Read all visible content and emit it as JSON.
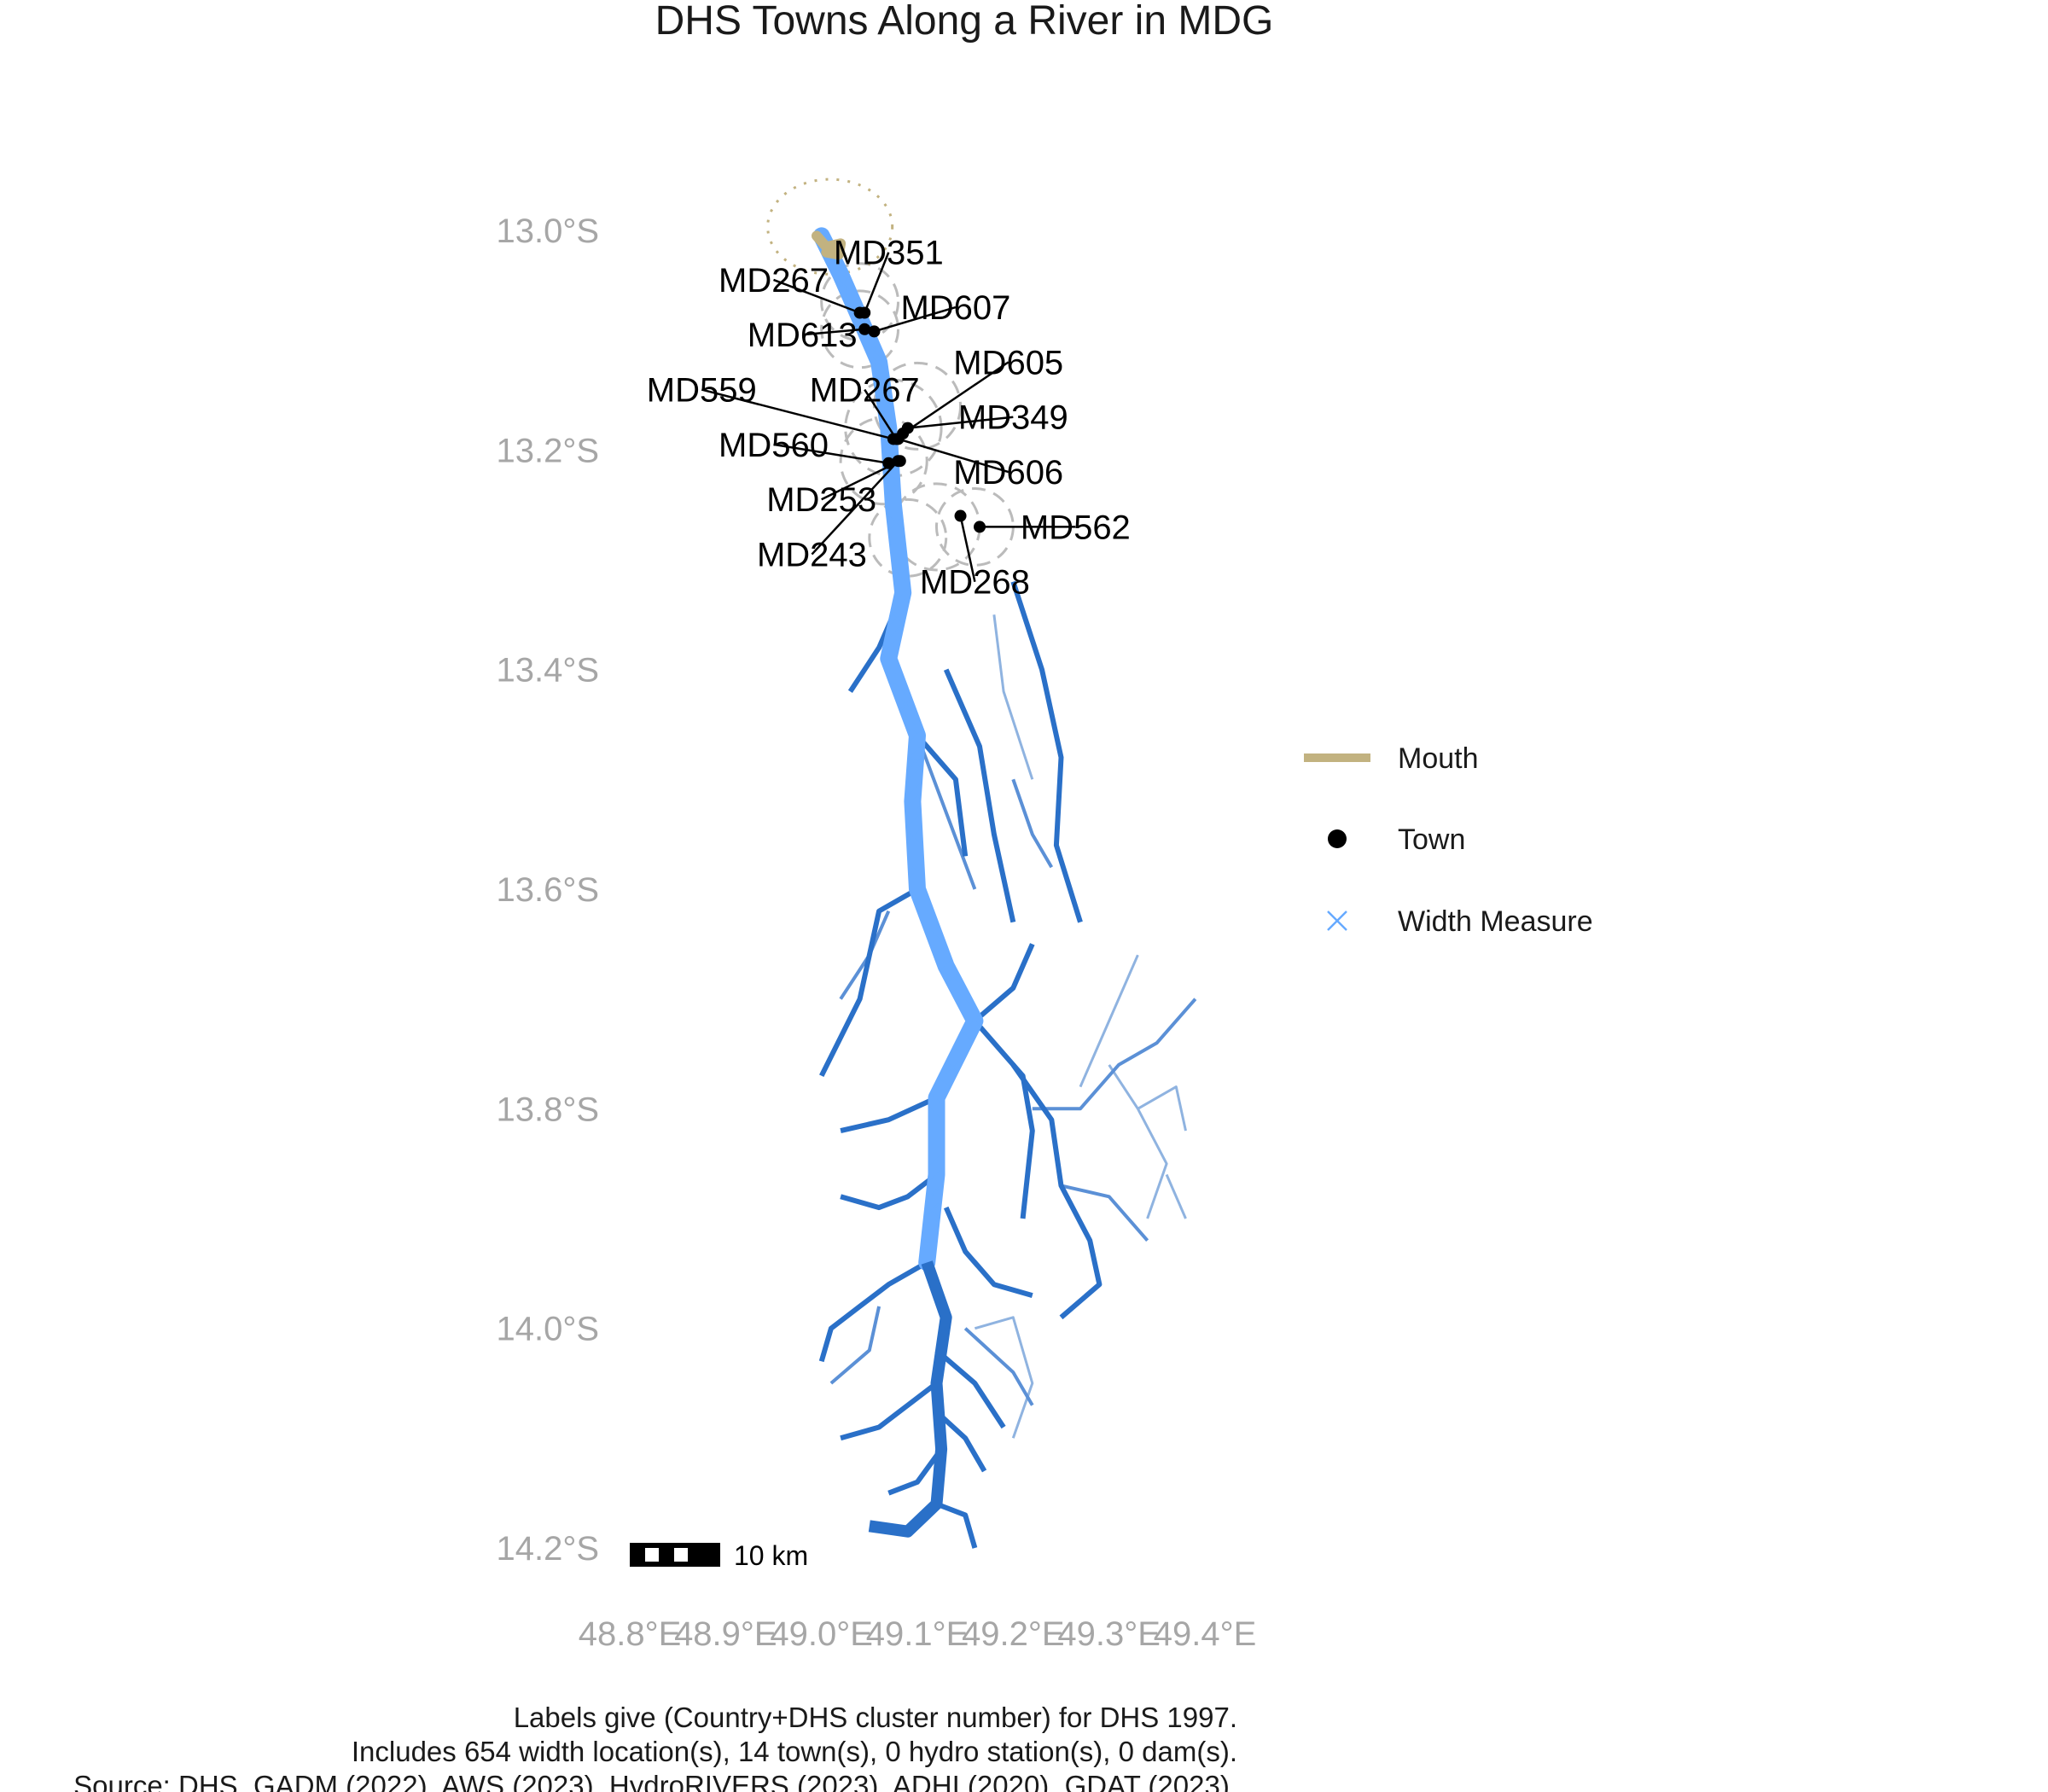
{
  "title": "DHS Towns Along a River in MDG",
  "colors": {
    "main_channel": "#66aaff",
    "tributary_dark": "#2a70c8",
    "tributary_mid": "#5b90d6",
    "tributary_light": "#8fb3e0",
    "mouth": "#c2b280",
    "town": "#000000",
    "width_measure": "#66aaff",
    "buffer": "#bbbbbb",
    "axis_text": "#a6a6a6"
  },
  "map": {
    "lon_range": [
      48.8,
      49.4
    ],
    "lat_range": [
      -14.2,
      -13.0
    ],
    "lat_ticks": [
      {
        "value": -13.0,
        "label": "13.0°S"
      },
      {
        "value": -13.2,
        "label": "13.2°S"
      },
      {
        "value": -13.4,
        "label": "13.4°S"
      },
      {
        "value": -13.6,
        "label": "13.6°S"
      },
      {
        "value": -13.8,
        "label": "13.8°S"
      },
      {
        "value": -14.0,
        "label": "14.0°S"
      },
      {
        "value": -14.2,
        "label": "14.2°S"
      }
    ],
    "lon_ticks": [
      {
        "value": 48.8,
        "label": "48.8°E"
      },
      {
        "value": 48.9,
        "label": "48.9°E"
      },
      {
        "value": 49.0,
        "label": "49.0°E"
      },
      {
        "value": 49.1,
        "label": "49.1°E"
      },
      {
        "value": 49.2,
        "label": "49.2°E"
      },
      {
        "value": 49.3,
        "label": "49.3°E"
      },
      {
        "value": 49.4,
        "label": "49.4°E"
      }
    ],
    "main_river": [
      [
        49.0,
        -13.005
      ],
      [
        49.02,
        -13.04
      ],
      [
        49.04,
        -13.08
      ],
      [
        49.06,
        -13.12
      ],
      [
        49.07,
        -13.18
      ],
      [
        49.075,
        -13.25
      ],
      [
        49.085,
        -13.33
      ],
      [
        49.07,
        -13.39
      ],
      [
        49.1,
        -13.46
      ],
      [
        49.095,
        -13.52
      ],
      [
        49.1,
        -13.6
      ],
      [
        49.13,
        -13.67
      ],
      [
        49.16,
        -13.72
      ],
      [
        49.12,
        -13.79
      ],
      [
        49.12,
        -13.86
      ],
      [
        49.11,
        -13.94
      ]
    ],
    "lower_river": [
      [
        49.11,
        -13.94
      ],
      [
        49.13,
        -13.99
      ],
      [
        49.12,
        -14.05
      ],
      [
        49.125,
        -14.11
      ],
      [
        49.12,
        -14.16
      ],
      [
        49.09,
        -14.185
      ],
      [
        49.05,
        -14.18
      ]
    ],
    "tributaries_dark": [
      [
        [
          49.085,
          -13.33
        ],
        [
          49.06,
          -13.38
        ],
        [
          49.03,
          -13.42
        ]
      ],
      [
        [
          49.1,
          -13.46
        ],
        [
          49.14,
          -13.5
        ],
        [
          49.15,
          -13.57
        ]
      ],
      [
        [
          49.13,
          -13.4
        ],
        [
          49.165,
          -13.47
        ],
        [
          49.18,
          -13.55
        ],
        [
          49.2,
          -13.63
        ]
      ],
      [
        [
          49.2,
          -13.32
        ],
        [
          49.23,
          -13.4
        ],
        [
          49.25,
          -13.48
        ],
        [
          49.245,
          -13.56
        ],
        [
          49.27,
          -13.63
        ]
      ],
      [
        [
          49.1,
          -13.6
        ],
        [
          49.06,
          -13.62
        ],
        [
          49.04,
          -13.7
        ],
        [
          49.0,
          -13.77
        ]
      ],
      [
        [
          49.12,
          -13.79
        ],
        [
          49.07,
          -13.81
        ],
        [
          49.02,
          -13.82
        ]
      ],
      [
        [
          49.16,
          -13.72
        ],
        [
          49.2,
          -13.69
        ],
        [
          49.22,
          -13.65
        ]
      ],
      [
        [
          49.16,
          -13.72
        ],
        [
          49.21,
          -13.77
        ],
        [
          49.22,
          -13.82
        ],
        [
          49.21,
          -13.9
        ]
      ],
      [
        [
          49.2,
          -13.76
        ],
        [
          49.24,
          -13.81
        ],
        [
          49.25,
          -13.87
        ],
        [
          49.28,
          -13.92
        ],
        [
          49.29,
          -13.96
        ],
        [
          49.25,
          -13.99
        ]
      ],
      [
        [
          49.12,
          -13.86
        ],
        [
          49.09,
          -13.88
        ],
        [
          49.06,
          -13.89
        ],
        [
          49.02,
          -13.88
        ]
      ],
      [
        [
          49.13,
          -13.89
        ],
        [
          49.15,
          -13.93
        ],
        [
          49.18,
          -13.96
        ],
        [
          49.22,
          -13.97
        ]
      ],
      [
        [
          49.11,
          -13.94
        ],
        [
          49.07,
          -13.96
        ],
        [
          49.04,
          -13.98
        ],
        [
          49.01,
          -14.0
        ],
        [
          49.0,
          -14.03
        ]
      ],
      [
        [
          49.12,
          -14.05
        ],
        [
          49.09,
          -14.07
        ],
        [
          49.06,
          -14.09
        ],
        [
          49.02,
          -14.1
        ]
      ],
      [
        [
          49.125,
          -14.08
        ],
        [
          49.15,
          -14.1
        ],
        [
          49.17,
          -14.13
        ]
      ],
      [
        [
          49.12,
          -14.02
        ],
        [
          49.16,
          -14.05
        ],
        [
          49.19,
          -14.09
        ]
      ],
      [
        [
          49.125,
          -14.11
        ],
        [
          49.1,
          -14.14
        ],
        [
          49.07,
          -14.15
        ]
      ],
      [
        [
          49.12,
          -14.16
        ],
        [
          49.15,
          -14.17
        ],
        [
          49.16,
          -14.2
        ]
      ]
    ],
    "tributaries_mid": [
      [
        [
          49.1,
          -13.46
        ],
        [
          49.13,
          -13.53
        ],
        [
          49.16,
          -13.6
        ]
      ],
      [
        [
          49.2,
          -13.5
        ],
        [
          49.22,
          -13.55
        ],
        [
          49.24,
          -13.58
        ]
      ],
      [
        [
          49.07,
          -13.62
        ],
        [
          49.05,
          -13.66
        ],
        [
          49.02,
          -13.7
        ]
      ],
      [
        [
          49.22,
          -13.8
        ],
        [
          49.27,
          -13.8
        ],
        [
          49.31,
          -13.76
        ],
        [
          49.35,
          -13.74
        ],
        [
          49.39,
          -13.7
        ]
      ],
      [
        [
          49.25,
          -13.87
        ],
        [
          49.3,
          -13.88
        ],
        [
          49.34,
          -13.92
        ]
      ],
      [
        [
          49.06,
          -13.98
        ],
        [
          49.05,
          -14.02
        ],
        [
          49.01,
          -14.05
        ]
      ],
      [
        [
          49.15,
          -14.0
        ],
        [
          49.2,
          -14.04
        ],
        [
          49.22,
          -14.07
        ]
      ]
    ],
    "tributaries_light": [
      [
        [
          49.18,
          -13.35
        ],
        [
          49.19,
          -13.42
        ],
        [
          49.22,
          -13.5
        ]
      ],
      [
        [
          49.27,
          -13.78
        ],
        [
          49.3,
          -13.72
        ],
        [
          49.33,
          -13.66
        ]
      ],
      [
        [
          49.3,
          -13.76
        ],
        [
          49.33,
          -13.8
        ],
        [
          49.36,
          -13.85
        ],
        [
          49.34,
          -13.9
        ]
      ],
      [
        [
          49.33,
          -13.8
        ],
        [
          49.37,
          -13.78
        ],
        [
          49.38,
          -13.82
        ]
      ],
      [
        [
          49.16,
          -14.0
        ],
        [
          49.2,
          -13.99
        ],
        [
          49.22,
          -14.05
        ],
        [
          49.2,
          -14.1
        ]
      ],
      [
        [
          49.36,
          -13.86
        ],
        [
          49.38,
          -13.9
        ]
      ]
    ],
    "mouth_path": [
      [
        48.995,
        -13.005
      ],
      [
        49.005,
        -13.015
      ],
      [
        49.02,
        -13.012
      ],
      [
        49.018,
        -13.022
      ],
      [
        49.005,
        -13.02
      ]
    ],
    "mouth_buffer": {
      "lon": 49.0,
      "lat": -13.02,
      "radius_lon": 0.065,
      "radius_lat": 0.09
    },
    "town_buffers": [
      {
        "lon": 49.04,
        "lat": -13.065,
        "r": 0.04
      },
      {
        "lon": 49.04,
        "lat": -13.09,
        "r": 0.04
      },
      {
        "lon": 49.075,
        "lat": -13.18,
        "r": 0.05
      },
      {
        "lon": 49.065,
        "lat": -13.21,
        "r": 0.045
      },
      {
        "lon": 49.1,
        "lat": -13.16,
        "r": 0.045
      },
      {
        "lon": 49.12,
        "lat": -13.27,
        "r": 0.045
      },
      {
        "lon": 49.16,
        "lat": -13.27,
        "r": 0.04
      },
      {
        "lon": 49.09,
        "lat": -13.28,
        "r": 0.04
      }
    ],
    "towns": [
      {
        "id": "MD351",
        "lon": 49.045,
        "lat": -13.075,
        "label_lon": 49.07,
        "label_lat": -13.02
      },
      {
        "id": "MD267",
        "lon": 49.04,
        "lat": -13.075,
        "label_lon": 48.95,
        "label_lat": -13.045
      },
      {
        "id": "MD607",
        "lon": 49.055,
        "lat": -13.092,
        "label_lon": 49.14,
        "label_lat": -13.07
      },
      {
        "id": "MD613",
        "lon": 49.045,
        "lat": -13.09,
        "label_lon": 48.98,
        "label_lat": -13.095
      },
      {
        "id": "MD605",
        "lon": 49.085,
        "lat": -13.185,
        "label_lon": 49.195,
        "label_lat": -13.12
      },
      {
        "id": "MD559",
        "lon": 49.075,
        "lat": -13.19,
        "label_lon": 48.875,
        "label_lat": -13.145
      },
      {
        "id": "MD267",
        "lon": 49.078,
        "lat": -13.19,
        "label_lon": 49.045,
        "label_lat": -13.145
      },
      {
        "id": "MD349",
        "lon": 49.09,
        "lat": -13.18,
        "label_lon": 49.2,
        "label_lat": -13.17
      },
      {
        "id": "MD560",
        "lon": 49.07,
        "lat": -13.212,
        "label_lon": 48.95,
        "label_lat": -13.195
      },
      {
        "id": "MD606",
        "lon": 49.08,
        "lat": -13.19,
        "label_lon": 49.195,
        "label_lat": -13.22
      },
      {
        "id": "MD253",
        "lon": 49.082,
        "lat": -13.21,
        "label_lon": 49.0,
        "label_lat": -13.245
      },
      {
        "id": "MD562",
        "lon": 49.165,
        "lat": -13.27,
        "label_lon": 49.265,
        "label_lat": -13.27
      },
      {
        "id": "MD243",
        "lon": 49.08,
        "lat": -13.21,
        "label_lon": 48.99,
        "label_lat": -13.295
      },
      {
        "id": "MD268",
        "lon": 49.145,
        "lat": -13.26,
        "label_lon": 49.16,
        "label_lat": -13.32
      }
    ]
  },
  "legend": {
    "items": [
      {
        "label": "Mouth",
        "kind": "line"
      },
      {
        "label": "Town",
        "kind": "point"
      },
      {
        "label": "Width Measure",
        "kind": "cross"
      }
    ]
  },
  "scale_bar": {
    "label": "10 km"
  },
  "captions": [
    "Labels give (Country+DHS cluster number) for DHS 1997.",
    "Includes 654 width location(s), 14 town(s), 0 hydro station(s), 0 dam(s).",
    "Source: DHS, GADM (2022), AWS (2023), HydroRIVERS (2023), ADHI (2020), GDAT (2023)."
  ]
}
